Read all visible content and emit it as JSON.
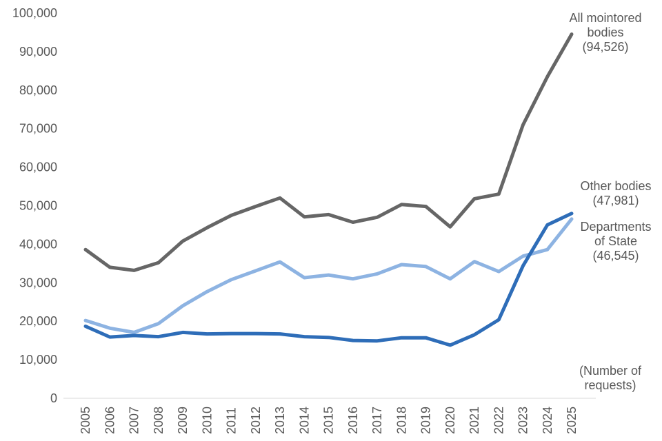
{
  "chart_data": {
    "type": "line",
    "x": [
      "2005",
      "2006",
      "2007",
      "2008",
      "2009",
      "2010",
      "2011",
      "2012",
      "2013",
      "2014",
      "2015",
      "2016",
      "2017",
      "2018",
      "2019",
      "2020",
      "2021",
      "2022",
      "2023",
      "2024",
      "2025"
    ],
    "ylim": [
      0,
      100000
    ],
    "yticks": [
      "0",
      "10,000",
      "20,000",
      "30,000",
      "40,000",
      "50,000",
      "60,000",
      "70,000",
      "80,000",
      "90,000",
      "100,000"
    ],
    "grid": false,
    "series": [
      {
        "label_lines": [
          "All mointored",
          "bodies",
          "(94,526)"
        ],
        "color": "#666666",
        "values": [
          38600,
          34000,
          33200,
          35200,
          40800,
          44300,
          47500,
          49800,
          52000,
          47100,
          47700,
          45700,
          47000,
          50300,
          49800,
          44500,
          51800,
          53000,
          71000,
          83500,
          94526
        ]
      },
      {
        "label_lines": [
          "Other bodies",
          "(47,981)"
        ],
        "color": "#2E6DB8",
        "values": [
          18700,
          15900,
          16300,
          16000,
          17100,
          16700,
          16800,
          16800,
          16700,
          16000,
          15800,
          15000,
          14900,
          15700,
          15700,
          13800,
          16500,
          20400,
          34400,
          45000,
          47981
        ]
      },
      {
        "label_lines": [
          "Departments",
          "of State",
          "(46,545)"
        ],
        "color": "#8DB3E2",
        "values": [
          20200,
          18200,
          17100,
          19400,
          24000,
          27700,
          30800,
          33100,
          35400,
          31300,
          32000,
          31000,
          32300,
          34700,
          34200,
          31000,
          35500,
          32900,
          36900,
          38600,
          46545
        ]
      }
    ],
    "annotation": [
      "(Number of",
      "requests)"
    ]
  }
}
